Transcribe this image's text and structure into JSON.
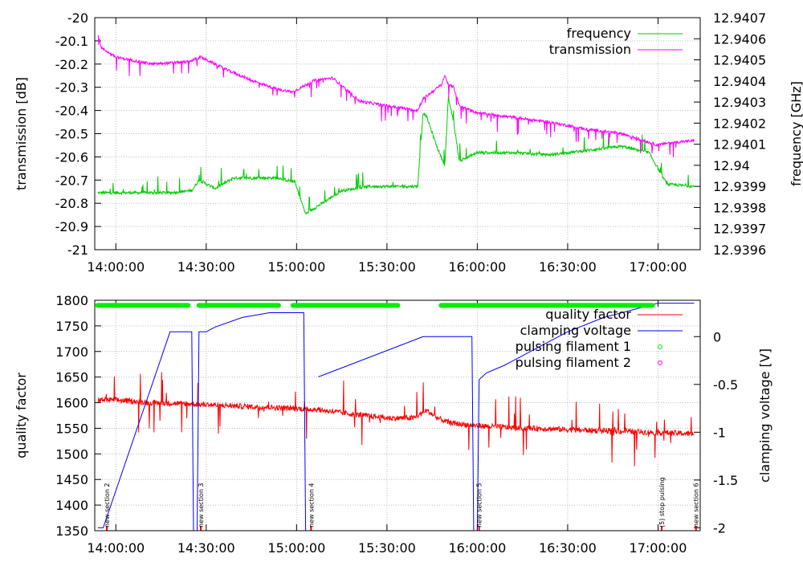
{
  "chart_data": [
    {
      "type": "line",
      "name": "top-panel",
      "x_unit": "time",
      "xlim": [
        "13:53:00",
        "17:14:00"
      ],
      "x_ticks": [
        "14:00:00",
        "14:30:00",
        "15:00:00",
        "15:30:00",
        "16:00:00",
        "16:30:00",
        "17:00:00"
      ],
      "ylabel": "transmission [dB]",
      "ylim": [
        -21,
        -20
      ],
      "y_ticks": [
        "-20",
        "-20.1",
        "-20.2",
        "-20.3",
        "-20.4",
        "-20.5",
        "-20.6",
        "-20.7",
        "-20.8",
        "-20.9",
        "-21"
      ],
      "y2label": "frequency [GHz]",
      "y2lim": [
        12.9396,
        12.9407
      ],
      "y2_ticks": [
        "12.9407",
        "12.9406",
        "12.9405",
        "12.9404",
        "12.9403",
        "12.9402",
        "12.9401",
        "12.94",
        "12.9399",
        "12.9398",
        "12.9397",
        "12.9396"
      ],
      "grid": true,
      "legend_position": "top-right",
      "series": [
        {
          "name": "frequency",
          "axis": "y2",
          "color": "#00cc00",
          "x_min": [
            13.9,
            14.1,
            14.3,
            14.42,
            14.46,
            14.55,
            14.65,
            14.9,
            14.99,
            15.05,
            15.25,
            15.4,
            15.55,
            15.67,
            15.7,
            15.72,
            15.78,
            15.82,
            15.84,
            15.87,
            15.9,
            16.0,
            16.2,
            16.4,
            16.6,
            16.8,
            16.95,
            17.05,
            17.2
          ],
          "values": [
            12.93987,
            12.93987,
            12.93987,
            12.93988,
            12.93993,
            12.93989,
            12.93994,
            12.93994,
            12.93992,
            12.93977,
            12.93988,
            12.9399,
            12.9399,
            12.9399,
            12.94025,
            12.94023,
            12.94008,
            12.94,
            12.94032,
            12.9402,
            12.94002,
            12.94006,
            12.94006,
            12.94005,
            12.94007,
            12.94009,
            12.94006,
            12.93991,
            12.9399
          ]
        },
        {
          "name": "transmission",
          "axis": "y",
          "color": "#ff00ff",
          "x_min": [
            13.9,
            13.92,
            14.0,
            14.2,
            14.4,
            14.47,
            14.6,
            14.75,
            14.9,
            14.98,
            15.1,
            15.2,
            15.35,
            15.5,
            15.67,
            15.7,
            15.8,
            15.82,
            15.84,
            15.87,
            15.9,
            16.0,
            16.2,
            16.4,
            16.6,
            16.8,
            17.0,
            17.05,
            17.2
          ],
          "values": [
            -20.07,
            -20.13,
            -20.17,
            -20.2,
            -20.19,
            -20.17,
            -20.22,
            -20.27,
            -20.31,
            -20.32,
            -20.27,
            -20.26,
            -20.36,
            -20.38,
            -20.4,
            -20.35,
            -20.29,
            -20.25,
            -20.29,
            -20.3,
            -20.38,
            -20.41,
            -20.43,
            -20.45,
            -20.48,
            -20.5,
            -20.55,
            -20.54,
            -20.53
          ]
        }
      ]
    },
    {
      "type": "line",
      "name": "bottom-panel",
      "x_unit": "time",
      "xlim": [
        "13:53:00",
        "17:14:00"
      ],
      "x_ticks": [
        "14:00:00",
        "14:30:00",
        "15:00:00",
        "15:30:00",
        "16:00:00",
        "16:30:00",
        "17:00:00"
      ],
      "ylabel": "quality factor",
      "ylim": [
        1350,
        1800
      ],
      "y_ticks": [
        "1800",
        "1750",
        "1700",
        "1650",
        "1600",
        "1550",
        "1500",
        "1450",
        "1400",
        "1350"
      ],
      "y2label": "clamping voltage [V]",
      "y2lim": [
        -2.03,
        0.38
      ],
      "y2_ticks": [
        "0",
        "-0.5",
        "-1",
        "-1.5",
        "-2"
      ],
      "grid": true,
      "legend_position": "top-right",
      "series": [
        {
          "name": "quality factor",
          "axis": "y",
          "color": "#ff0000",
          "x_min": [
            13.9,
            14.0,
            14.2,
            14.4,
            14.5,
            14.7,
            14.9,
            15.1,
            15.3,
            15.5,
            15.65,
            15.72,
            15.78,
            15.85,
            16.0,
            16.2,
            16.4,
            16.6,
            16.8,
            17.0,
            17.2
          ],
          "values": [
            1605,
            1605,
            1600,
            1598,
            1596,
            1593,
            1590,
            1587,
            1578,
            1570,
            1570,
            1585,
            1570,
            1560,
            1555,
            1551,
            1549,
            1546,
            1544,
            1542,
            1539
          ]
        },
        {
          "name": "clamping voltage",
          "axis": "y2",
          "color": "#0000ff",
          "segments": [
            [
              [
                13.9,
                -2.0
              ],
              [
                13.93,
                -2.0
              ],
              [
                14.3,
                0.05
              ],
              [
                14.42,
                0.05
              ],
              [
                14.43,
                -2.03
              ],
              [
                14.45,
                -2.03
              ],
              [
                14.46,
                0.05
              ],
              [
                14.5,
                0.05
              ],
              [
                14.55,
                0.1
              ],
              [
                14.7,
                0.2
              ],
              [
                14.85,
                0.25
              ],
              [
                15.04,
                0.25
              ],
              [
                15.05,
                -2.03
              ]
            ],
            [
              [
                15.12,
                -0.42
              ],
              [
                15.15,
                -0.4
              ],
              [
                15.7,
                0.0
              ],
              [
                15.97,
                0.0
              ],
              [
                15.98,
                -2.03
              ],
              [
                16.0,
                -2.03
              ],
              [
                16.01,
                -0.45
              ],
              [
                16.05,
                -0.38
              ],
              [
                16.15,
                -0.3
              ],
              [
                16.3,
                -0.15
              ],
              [
                16.5,
                0.05
              ],
              [
                16.7,
                0.2
              ],
              [
                16.9,
                0.3
              ],
              [
                17.0,
                0.35
              ],
              [
                17.2,
                0.35
              ]
            ]
          ]
        },
        {
          "name": "pulsing filament 1",
          "color": "#00ee00",
          "marker": "circle",
          "value": 1790,
          "intervals": [
            [
              13.9,
              14.4
            ],
            [
              14.46,
              14.9
            ],
            [
              14.98,
              15.56
            ],
            [
              15.8,
              16.97
            ]
          ]
        },
        {
          "name": "pulsing filament 2",
          "color": "#ff00ff",
          "marker": "circle",
          "intervals": []
        }
      ],
      "annotations": [
        {
          "text": "new section 2",
          "x": 13.95
        },
        {
          "text": "new section 3",
          "x": 14.47
        },
        {
          "text": "new section 4",
          "x": 15.08
        },
        {
          "text": "new section 5",
          "x": 16.01
        },
        {
          "text": "(5) stop pulsing",
          "x": 17.02
        },
        {
          "text": "new section 6",
          "x": 17.21
        }
      ]
    }
  ]
}
